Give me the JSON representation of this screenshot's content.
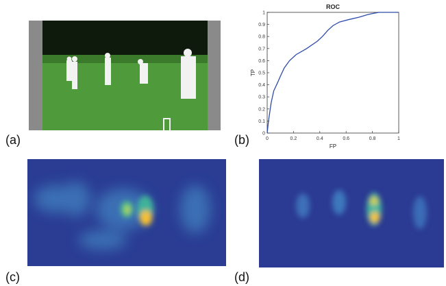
{
  "panels": {
    "a": {
      "label": "(a)"
    },
    "b": {
      "label": "(b)"
    },
    "c": {
      "label": "(c)"
    },
    "d": {
      "label": "(d)"
    }
  },
  "chart_data": {
    "type": "line",
    "title": "ROC",
    "xlabel": "FP",
    "ylabel": "TP",
    "color": "#2b4aa8",
    "x": [
      0,
      0.01,
      0.03,
      0.05,
      0.08,
      0.1,
      0.13,
      0.17,
      0.22,
      0.3,
      0.38,
      0.42,
      0.46,
      0.5,
      0.55,
      0.62,
      0.7,
      0.76,
      0.8,
      0.85,
      1
    ],
    "values": [
      0,
      0.1,
      0.25,
      0.35,
      0.42,
      0.47,
      0.54,
      0.6,
      0.65,
      0.7,
      0.76,
      0.8,
      0.85,
      0.89,
      0.92,
      0.94,
      0.96,
      0.98,
      0.99,
      1,
      1
    ],
    "xlim": [
      0,
      1
    ],
    "ylim": [
      0,
      1
    ],
    "xticks": [
      0,
      0.2,
      0.4,
      0.6,
      0.8,
      1
    ],
    "yticks": [
      0,
      0.1,
      0.2,
      0.3,
      0.4,
      0.5,
      0.6,
      0.7,
      0.8,
      0.9,
      1
    ]
  }
}
